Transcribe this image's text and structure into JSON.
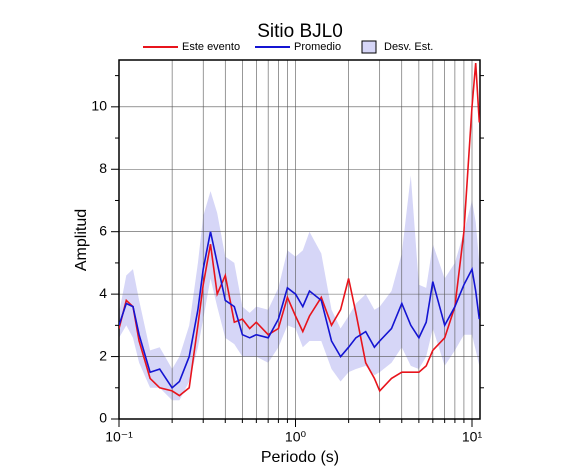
{
  "chart_data": {
    "type": "line",
    "title": "Sitio BJL0",
    "xlabel": "Periodo (s)",
    "ylabel": "Amplitud",
    "xscale": "log",
    "xlim": [
      0.1,
      11.1
    ],
    "ylim": [
      0,
      11.5
    ],
    "xticks": [
      {
        "value": 0.1,
        "label": "10⁻¹"
      },
      {
        "value": 1,
        "label": "10⁰"
      },
      {
        "value": 10,
        "label": "10¹"
      }
    ],
    "xminor": [
      0.2,
      0.3,
      0.4,
      0.5,
      0.6,
      0.7,
      0.8,
      0.9,
      2,
      3,
      4,
      5,
      6,
      7,
      8,
      9
    ],
    "yticks": [
      0,
      2,
      4,
      6,
      8,
      10
    ],
    "yminor": [
      1,
      3,
      5,
      7,
      9,
      11
    ],
    "grid": true,
    "x": [
      0.1,
      0.11,
      0.12,
      0.13,
      0.15,
      0.17,
      0.2,
      0.22,
      0.25,
      0.28,
      0.3,
      0.33,
      0.36,
      0.4,
      0.45,
      0.5,
      0.55,
      0.6,
      0.7,
      0.8,
      0.9,
      1.0,
      1.1,
      1.2,
      1.4,
      1.6,
      1.8,
      2.0,
      2.2,
      2.5,
      2.8,
      3.0,
      3.5,
      4.0,
      4.5,
      5.0,
      5.5,
      6,
      7,
      8,
      9,
      10,
      10.5,
      11
    ],
    "band": {
      "name": "Desv. Est.",
      "color": "#d6d6f7",
      "upper": [
        3.4,
        4.6,
        4.8,
        3.8,
        2.2,
        2.3,
        1.6,
        2.0,
        3.0,
        5.0,
        6.5,
        7.3,
        6.6,
        5.2,
        5.0,
        3.6,
        3.4,
        3.6,
        3.5,
        4.2,
        5.4,
        5.2,
        5.4,
        6.0,
        5.3,
        3.5,
        2.9,
        3.3,
        3.7,
        4.0,
        3.5,
        3.6,
        4.1,
        5.3,
        7.8,
        4.3,
        4.2,
        5.6,
        4.5,
        5.0,
        6.0,
        7.0,
        6.3,
        5.0
      ],
      "lower": [
        2.6,
        3.0,
        2.6,
        1.8,
        1.0,
        1.0,
        0.6,
        0.6,
        1.2,
        2.3,
        3.2,
        4.5,
        3.6,
        2.6,
        2.4,
        2.0,
        2.0,
        2.0,
        1.8,
        2.3,
        3.0,
        2.9,
        2.3,
        2.5,
        2.5,
        1.6,
        1.2,
        1.5,
        1.6,
        1.7,
        1.4,
        1.5,
        1.8,
        2.3,
        1.7,
        1.6,
        2.0,
        2.9,
        1.7,
        2.2,
        2.7,
        2.7,
        2.2,
        1.7
      ]
    },
    "series": [
      {
        "name": "Este evento",
        "color": "#e8141c",
        "values": [
          2.9,
          3.8,
          3.6,
          2.5,
          1.3,
          1.0,
          0.9,
          0.75,
          1.0,
          3.0,
          4.3,
          5.6,
          4.0,
          4.6,
          3.1,
          3.2,
          2.9,
          3.1,
          2.7,
          2.9,
          3.9,
          3.3,
          2.8,
          3.3,
          3.9,
          3.0,
          3.5,
          4.5,
          3.4,
          1.8,
          1.3,
          0.9,
          1.3,
          1.5,
          1.5,
          1.5,
          1.7,
          2.2,
          2.6,
          3.6,
          6.0,
          10.0,
          11.4,
          9.5
        ]
      },
      {
        "name": "Promedio",
        "color": "#1414d2",
        "values": [
          3.0,
          3.7,
          3.6,
          2.7,
          1.5,
          1.6,
          1.0,
          1.2,
          2.0,
          3.5,
          4.8,
          6.0,
          5.0,
          3.8,
          3.6,
          2.7,
          2.6,
          2.7,
          2.6,
          3.2,
          4.2,
          4.0,
          3.6,
          4.1,
          3.8,
          2.5,
          2.0,
          2.3,
          2.6,
          2.8,
          2.3,
          2.5,
          2.9,
          3.7,
          3.0,
          2.6,
          3.1,
          4.4,
          3.0,
          3.6,
          4.3,
          4.8,
          4.1,
          3.2
        ]
      }
    ]
  }
}
